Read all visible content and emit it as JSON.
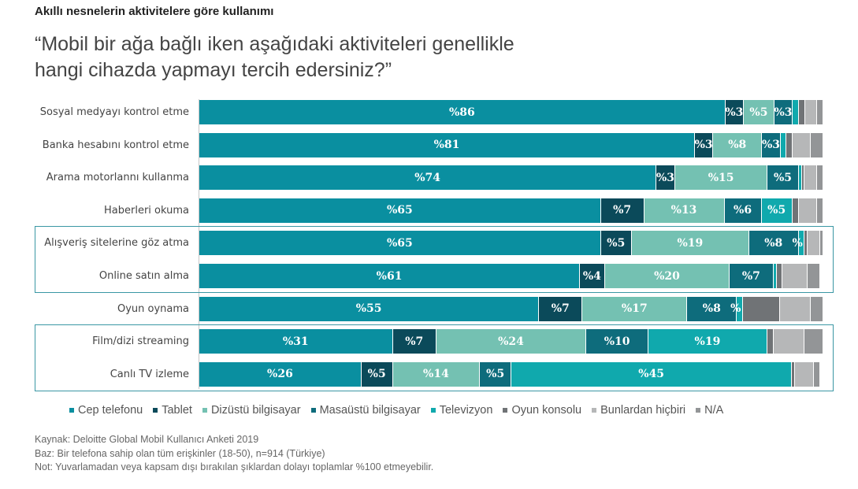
{
  "subtitle": "Akıllı nesnelerin aktivitelere göre kullanımı",
  "title_line1": "“Mobil bir ağa bağlı iken aşağıdaki aktiviteleri genellikle",
  "title_line2": "hangi cihazda yapmayı tercih edersiniz?”",
  "chart_data": {
    "type": "bar",
    "orientation": "horizontal-stacked",
    "title": "“Mobil bir ağa bağlı iken aşağıdaki aktiviteleri genellikle hangi cihazda yapmayı tercih edersiniz?”",
    "xlabel": "",
    "ylabel": "",
    "xlim": [
      0,
      100
    ],
    "label_prefix": "%",
    "legend_position": "bottom",
    "categories": [
      "Sosyal medyayı kontrol etme",
      "Banka hesabını kontrol etme",
      "Arama motorlannı kullanma",
      "Haberleri okuma",
      "Alışveriş sitelerine göz atma",
      "Online satın alma",
      "Oyun oynama",
      "Film/dizi streaming",
      "Canlı TV izleme"
    ],
    "highlight_groups": [
      [
        4,
        5
      ],
      [
        7,
        8
      ]
    ],
    "series": [
      {
        "name": "Cep telefonu",
        "color": "#0a8fa0",
        "values": [
          86,
          81,
          74,
          65,
          65,
          61,
          55,
          31,
          26
        ],
        "labeled": [
          true,
          true,
          true,
          true,
          true,
          true,
          true,
          true,
          true
        ]
      },
      {
        "name": "Tablet",
        "color": "#0b4a5a",
        "values": [
          3,
          3,
          3,
          7,
          5,
          4,
          7,
          7,
          5
        ],
        "labeled": [
          true,
          true,
          true,
          true,
          true,
          true,
          true,
          true,
          true
        ]
      },
      {
        "name": "Dizüstü bilgisayar",
        "color": "#74c1b2",
        "values": [
          5,
          8,
          15,
          13,
          19,
          20,
          17,
          24,
          14
        ],
        "labeled": [
          true,
          true,
          true,
          true,
          true,
          true,
          true,
          true,
          true
        ]
      },
      {
        "name": "Masaüstü bilgisayar",
        "color": "#0e6c7c",
        "values": [
          3,
          3,
          5,
          6,
          8,
          7,
          8,
          10,
          5
        ],
        "labeled": [
          true,
          true,
          true,
          true,
          true,
          true,
          true,
          true,
          true
        ]
      },
      {
        "name": "Televizyon",
        "color": "#10a9ad",
        "values": [
          1,
          1,
          0.5,
          5,
          1,
          0.5,
          1,
          19,
          45
        ],
        "labeled": [
          false,
          false,
          false,
          true,
          true,
          false,
          true,
          true,
          true
        ]
      },
      {
        "name": "Oyun konsolu",
        "color": "#707376",
        "values": [
          1,
          1,
          0.5,
          1,
          0.5,
          1,
          6,
          1,
          0.5
        ],
        "labeled": [
          false,
          false,
          false,
          false,
          false,
          false,
          false,
          false,
          false
        ]
      },
      {
        "name": "Bunlardan hiçbiri",
        "color": "#b6b7b8",
        "values": [
          2,
          3,
          2,
          3,
          2,
          4,
          5,
          5,
          3
        ],
        "labeled": [
          false,
          false,
          false,
          false,
          false,
          false,
          false,
          false,
          false
        ]
      },
      {
        "name": "N/A",
        "color": "#939597",
        "values": [
          1,
          2,
          1,
          1,
          0.5,
          2,
          2,
          3,
          1
        ],
        "labeled": [
          false,
          false,
          false,
          false,
          false,
          false,
          false,
          false,
          false
        ]
      }
    ]
  },
  "notes": [
    "Kaynak: Deloitte Global Mobil Kullanıcı Anketi 2019",
    "Baz: Bir telefona sahip olan tüm erişkinler (18-50), n=914 (Türkiye)",
    "Not: Yuvarlamadan veya kapsam dışı bırakılan şıklardan dolayı toplamlar %100 etmeyebilir."
  ]
}
